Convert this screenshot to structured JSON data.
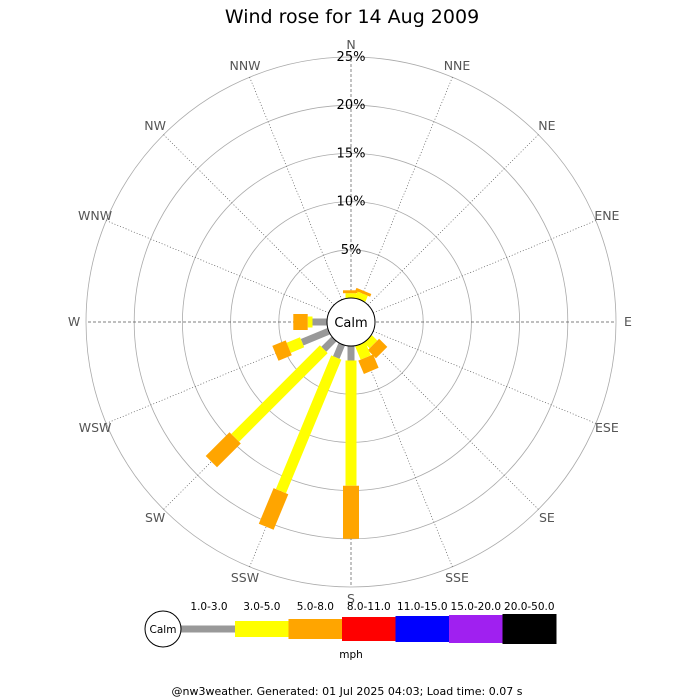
{
  "chart_data": {
    "type": "wind-rose",
    "title": "Wind rose for 14 Aug 2009",
    "calm_label": "Calm",
    "directions": [
      "N",
      "NNE",
      "NE",
      "ENE",
      "E",
      "ESE",
      "SE",
      "SSE",
      "S",
      "SSW",
      "SW",
      "WSW",
      "W",
      "WNW",
      "NW",
      "NNW"
    ],
    "radial_ticks": [
      "5%",
      "10%",
      "15%",
      "20%",
      "25%"
    ],
    "radial_values": [
      5,
      10,
      15,
      20,
      25
    ],
    "rmax": 25,
    "calm_percent": 2.5,
    "bins": [
      {
        "label": "1.0-3.0",
        "color": "#999999"
      },
      {
        "label": "3.0-5.0",
        "color": "#ffff00"
      },
      {
        "label": "5.0-8.0",
        "color": "#ffa500"
      },
      {
        "label": "8.0-11.0",
        "color": "#ff0000"
      },
      {
        "label": "11.0-15.0",
        "color": "#0000ff"
      },
      {
        "label": "15.0-20.0",
        "color": "#a020f0"
      },
      {
        "label": "20.0-50.0",
        "color": "#000000"
      }
    ],
    "units": "mph",
    "frequencies": {
      "N": [
        0,
        0.5,
        0.3,
        0,
        0,
        0,
        0
      ],
      "NNE": [
        0,
        0.7,
        0.3,
        0,
        0,
        0,
        0
      ],
      "NE": [
        0,
        0,
        0,
        0,
        0,
        0,
        0
      ],
      "ENE": [
        0,
        0,
        0,
        0,
        0,
        0,
        0
      ],
      "E": [
        0,
        0,
        0,
        0,
        0,
        0,
        0
      ],
      "ESE": [
        0,
        0,
        0,
        0,
        0,
        0,
        0
      ],
      "SE": [
        0,
        0.8,
        1.2,
        0,
        0,
        0,
        0
      ],
      "SSE": [
        0,
        1.5,
        1.5,
        0,
        0,
        0,
        0
      ],
      "S": [
        1.5,
        13.0,
        5.5,
        0,
        0,
        0,
        0
      ],
      "SSW": [
        1.5,
        15.0,
        4.0,
        0,
        0,
        0,
        0
      ],
      "SW": [
        1.5,
        13.0,
        3.5,
        0,
        0,
        0,
        0
      ],
      "WSW": [
        3.0,
        1.5,
        1.5,
        0,
        0,
        0,
        0
      ],
      "W": [
        1.5,
        0.5,
        1.5,
        0,
        0,
        0,
        0
      ],
      "WNW": [
        0,
        0,
        0,
        0,
        0,
        0,
        0
      ],
      "NW": [
        0,
        0,
        0,
        0,
        0,
        0,
        0
      ],
      "NNW": [
        0,
        0,
        0,
        0,
        0,
        0,
        0
      ]
    }
  },
  "footer": "@nw3weather. Generated: 01 Jul 2025 04:03; Load time: 0.07 s"
}
